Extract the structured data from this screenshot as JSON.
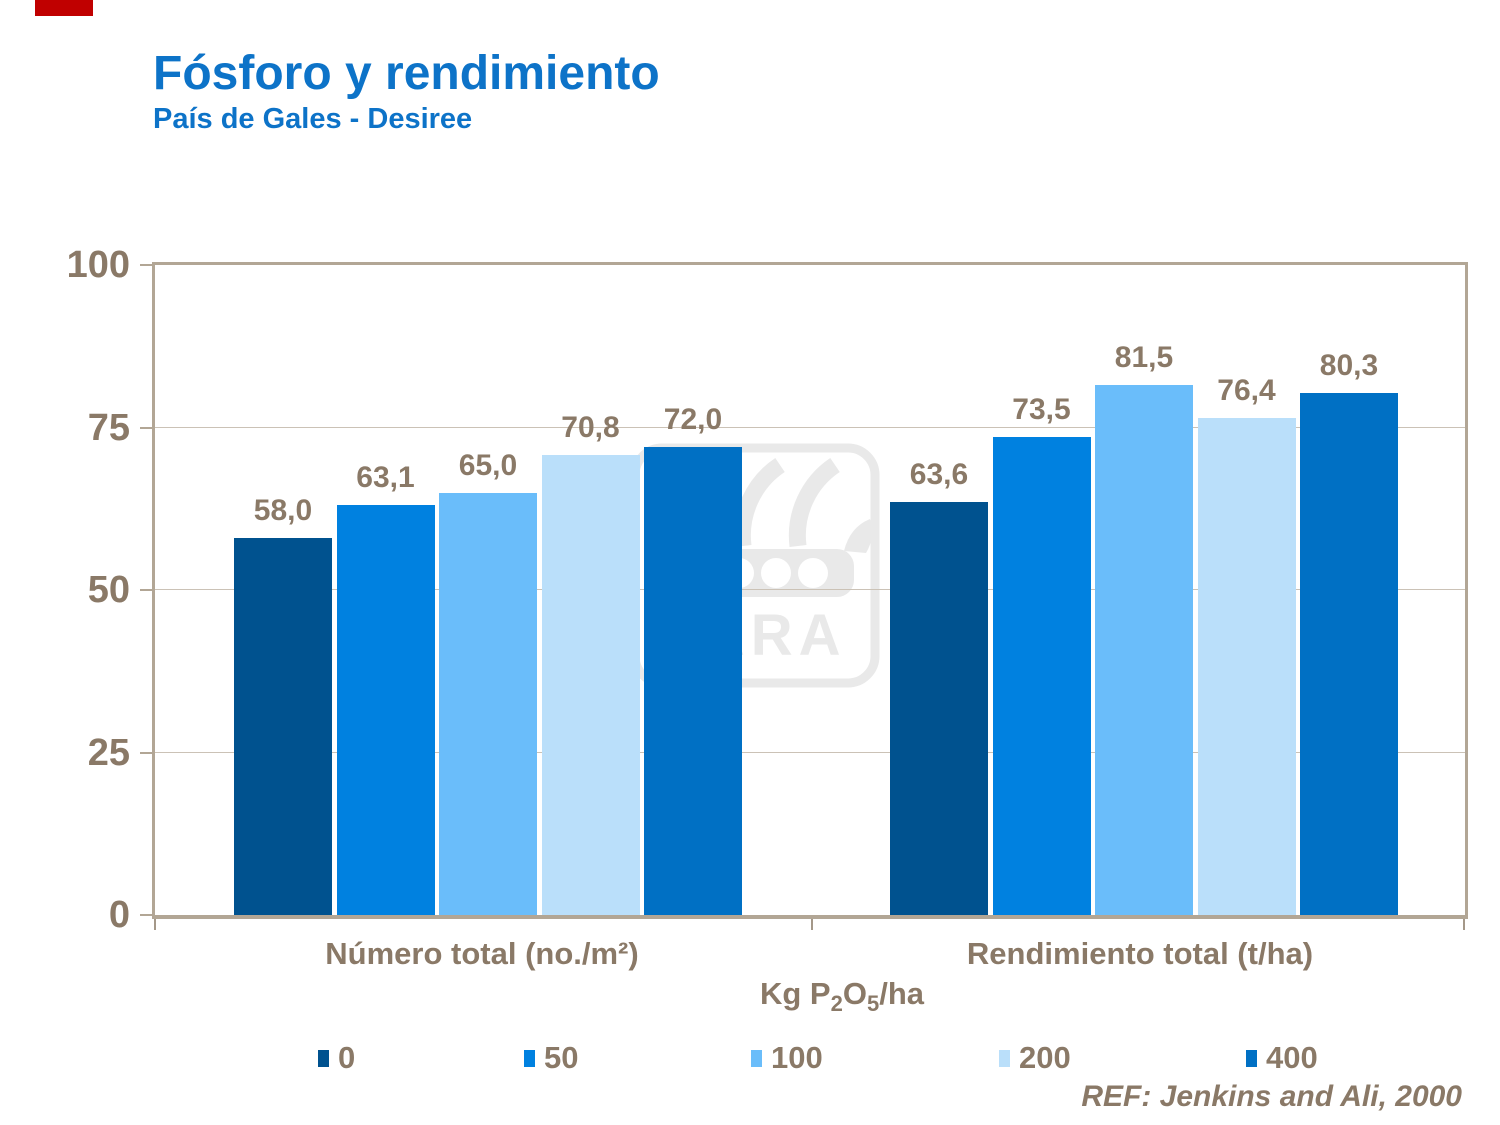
{
  "accent_bar": {
    "color": "#C00000"
  },
  "header": {
    "title": "Fósforo y rendimiento",
    "subtitle": "País de Gales - Desiree",
    "title_color": "#0D73C8"
  },
  "chart_data": {
    "type": "bar",
    "title": "Fósforo y rendimiento",
    "subtitle": "País de Gales - Desiree",
    "categories": [
      "Número total (no./m²)",
      "Rendimiento total (t/ha)"
    ],
    "series": [
      {
        "name": "0",
        "color": "#00528F",
        "values": [
          58.0,
          63.6
        ]
      },
      {
        "name": "50",
        "color": "#0081E0",
        "values": [
          63.1,
          73.5
        ]
      },
      {
        "name": "100",
        "color": "#6ABDFA",
        "values": [
          65.0,
          81.5
        ]
      },
      {
        "name": "200",
        "color": "#BADFFA",
        "values": [
          70.8,
          76.4
        ]
      },
      {
        "name": "400",
        "color": "#0070C4",
        "values": [
          72.0,
          80.3
        ]
      }
    ],
    "value_labels": [
      [
        "58,0",
        "63,1",
        "65,0",
        "70,8",
        "72,0"
      ],
      [
        "63,6",
        "73,5",
        "81,5",
        "76,4",
        "80,3"
      ]
    ],
    "ylim": [
      0,
      100
    ],
    "yticks": [
      0,
      25,
      50,
      75,
      100
    ],
    "grid": true,
    "legend_position": "bottom",
    "xlabel": "Kg P2O5/ha",
    "xlabel_parts": [
      {
        "text": "Kg P"
      },
      {
        "text": "2",
        "sub": true
      },
      {
        "text": "O"
      },
      {
        "text": "5",
        "sub": true
      },
      {
        "text": "/ha"
      }
    ]
  },
  "footer": {
    "reference": "REF: Jenkins and Ali, 2000"
  },
  "watermark": {
    "text": "YARA",
    "color": "#E9E9E9"
  },
  "style_colors": {
    "text": "#8A7967",
    "axis_border": "#B2A695",
    "gridline": "#CBC2B6",
    "tick": "#A49889"
  }
}
